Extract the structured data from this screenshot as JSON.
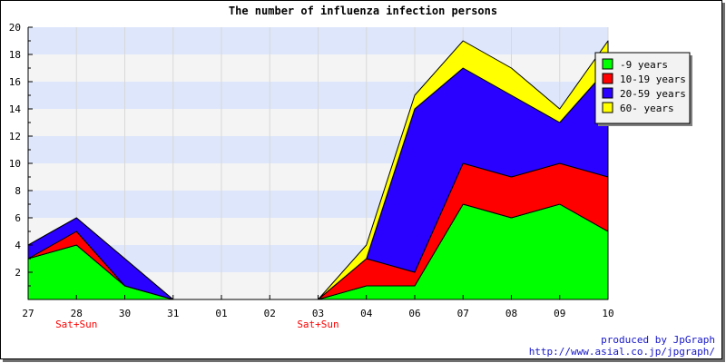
{
  "chart_data": {
    "type": "area",
    "stacked": true,
    "title": "The number of influenza infection persons",
    "xlabel": "",
    "ylabel": "",
    "categories": [
      "27",
      "28",
      "30",
      "31",
      "01",
      "02",
      "03",
      "04",
      "06",
      "07",
      "08",
      "09",
      "10"
    ],
    "sublabels": [
      "",
      "Sat+Sun",
      "",
      "",
      "",
      "",
      "Sat+Sun",
      "",
      "",
      "",
      "",
      "",
      ""
    ],
    "ylim": [
      0,
      20
    ],
    "yticks": [
      2,
      4,
      6,
      8,
      10,
      12,
      14,
      16,
      18,
      20
    ],
    "grid": true,
    "band_colors": [
      "#f4f4f4",
      "#dde6fb"
    ],
    "legend_position": "top-right",
    "series": [
      {
        "name": "-9 years",
        "color": "#00ff00",
        "values": [
          3,
          4,
          1,
          0,
          0,
          0,
          0,
          1,
          1,
          7,
          6,
          7,
          5
        ]
      },
      {
        "name": "10-19 years",
        "color": "#ff0000",
        "values": [
          0,
          1,
          0,
          0,
          0,
          0,
          0,
          2,
          1,
          3,
          3,
          3,
          4
        ]
      },
      {
        "name": "20-59 years",
        "color": "#2a00ff",
        "values": [
          1,
          1,
          2,
          0,
          0,
          0,
          0,
          0,
          12,
          7,
          6,
          3,
          8
        ]
      },
      {
        "name": "60- years",
        "color": "#ffff00",
        "values": [
          0,
          0,
          0,
          0,
          0,
          0,
          0,
          1,
          1,
          2,
          2,
          1,
          2
        ]
      }
    ]
  },
  "credits": {
    "line1": "produced by JpGraph",
    "line2": "http://www.asial.co.jp/jpgraph/"
  }
}
